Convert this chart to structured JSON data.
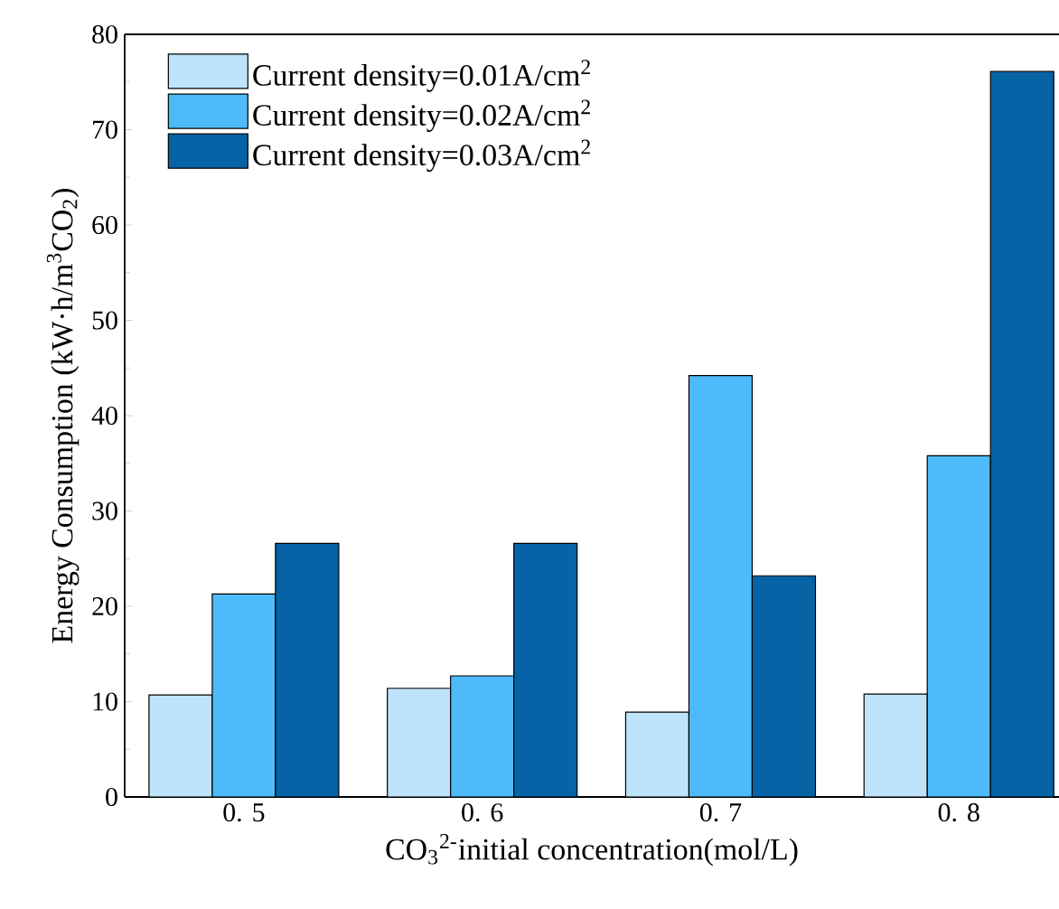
{
  "chart_data": {
    "type": "bar",
    "xlabel": "CO$_{3}$$^{2-}$initial concentration(mol/L)",
    "ylabel": "Energy Consumption (kW·h/m$^{3}$CO$_{2}$)",
    "categories": [
      "0. 5",
      "0. 6",
      "0. 7",
      "0. 8"
    ],
    "series": [
      {
        "name": "Current density=0.01A/cm$^{2}$",
        "color": "#bde4fb",
        "values": [
          10.7,
          11.4,
          8.9,
          10.8
        ]
      },
      {
        "name": "Current density=0.02A/cm$^{2}$",
        "color": "#4dbbf9",
        "values": [
          21.3,
          12.7,
          44.2,
          35.8
        ]
      },
      {
        "name": "Current density=0.03A/cm$^{2}$",
        "color": "#0563a6",
        "values": [
          26.6,
          26.6,
          23.2,
          76.1
        ]
      }
    ],
    "ylim": [
      0,
      80
    ],
    "yticks": [
      0,
      10,
      20,
      30,
      40,
      50,
      60,
      70,
      80
    ],
    "grid": false,
    "legend": "top left"
  }
}
